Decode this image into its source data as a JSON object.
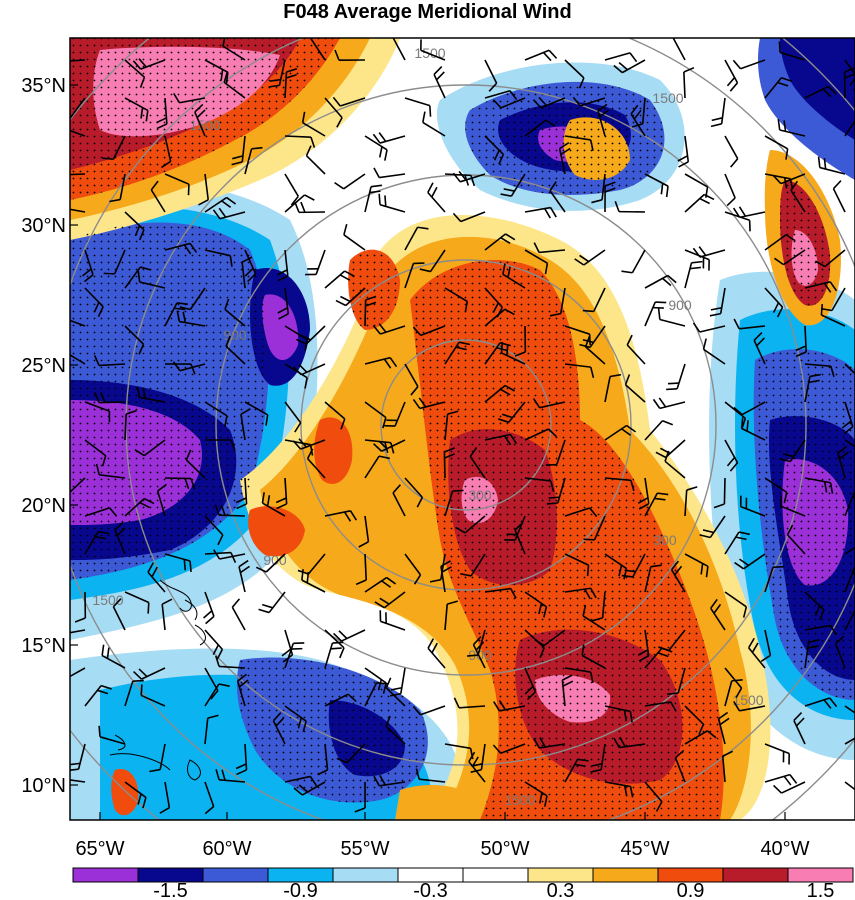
{
  "title": "F048 Average Meridional Wind",
  "axes": {
    "lat_labels": [
      "35°N",
      "30°N",
      "25°N",
      "20°N",
      "15°N",
      "10°N"
    ],
    "lon_labels": [
      "65°W",
      "60°W",
      "55°W",
      "50°W",
      "45°W",
      "40°W"
    ]
  },
  "contour_labels": [
    "1500",
    "1500",
    "1500",
    "900",
    "900",
    "900",
    "900",
    "300",
    "300",
    "1500",
    "1500",
    "1500"
  ],
  "colorbar": {
    "colors": [
      "#9b30d8",
      "#08088e",
      "#3d5ad6",
      "#0bb4f0",
      "#a6dcf4",
      "#ffffff",
      "#ffffff",
      "#fde68a",
      "#f6a91a",
      "#f04c0e",
      "#b81c2b",
      "#f77db3"
    ],
    "tick_labels": [
      "-1.5",
      "-0.9",
      "-0.3",
      "0.3",
      "0.9",
      "1.5"
    ]
  }
}
